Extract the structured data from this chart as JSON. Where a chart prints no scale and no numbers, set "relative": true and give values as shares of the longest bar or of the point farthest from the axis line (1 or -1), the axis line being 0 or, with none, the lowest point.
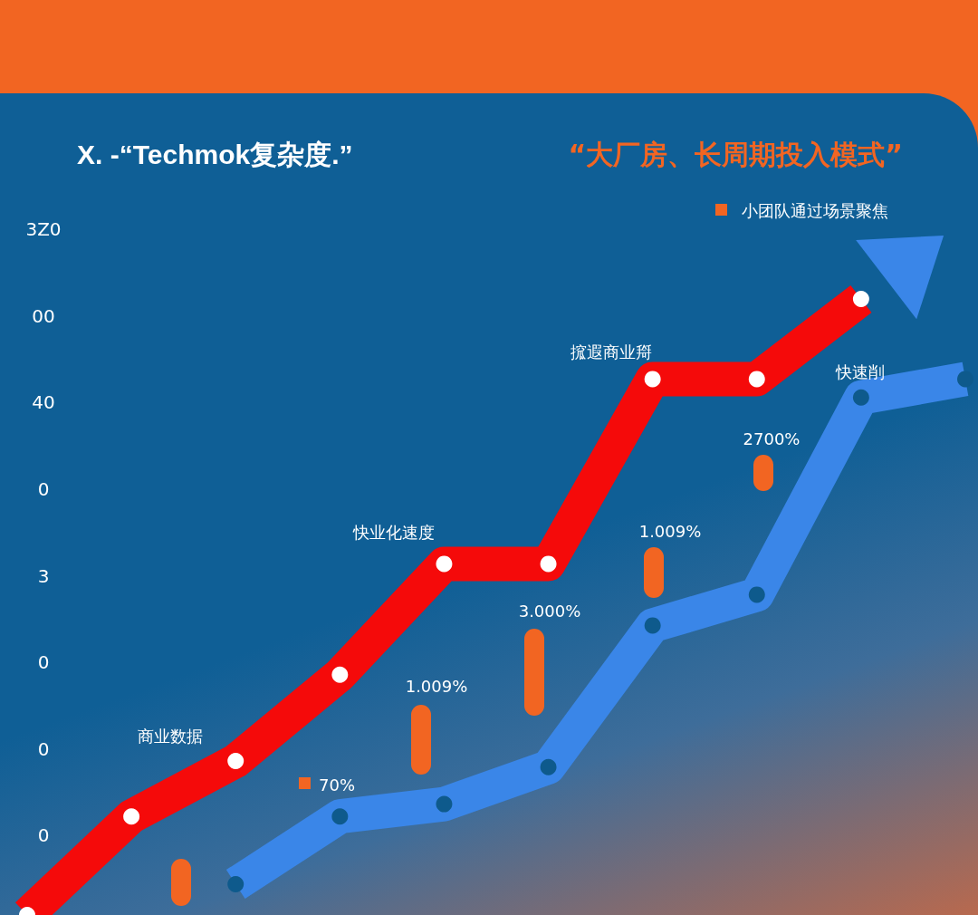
{
  "chart_data": {
    "type": "line",
    "title": "X. -“Techmok复杂度.”",
    "subtitle": "“大厂房、长周期投入模式”",
    "relative": true,
    "categories": [
      null,
      null,
      null,
      null,
      null,
      null,
      null,
      null,
      null,
      null
    ],
    "series": [
      {
        "color": "#f50a0a",
        "values": [
          0,
          0.16,
          0.25,
          0.39,
          0.57,
          0.57,
          0.87,
          0.87,
          1.0,
          null
        ]
      },
      {
        "color": "#3a86e8",
        "values": [
          null,
          null,
          0.05,
          0.16,
          0.18,
          0.24,
          0.47,
          0.52,
          0.84,
          0.87
        ]
      }
    ],
    "annotations": [
      "3Z0",
      "00",
      "40",
      "0",
      "3",
      "0",
      "0",
      "0",
      "商业数据",
      "快业化速度",
      "搲遐商业搿",
      "快速削",
      "70%",
      "1.009%",
      "3.000%",
      "1.009%",
      "2700%",
      "小团队通过场景聚焦"
    ],
    "marker": "circle",
    "line_style": "solid"
  }
}
